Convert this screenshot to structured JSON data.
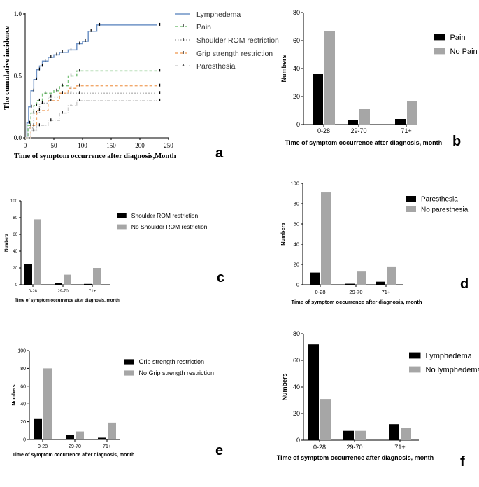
{
  "chart_data": [
    {
      "id": "a",
      "panel_label": "a",
      "type": "line",
      "title": "",
      "xlabel": "Time of symptom occurrence after diagnosis,Month",
      "ylabel": "The cumulative incidence",
      "xlim": [
        0,
        250
      ],
      "ylim": [
        0,
        1.0
      ],
      "xticks": [
        "0",
        "50",
        "100",
        "150",
        "200",
        "250"
      ],
      "yticks": [
        "0.0",
        "0.5",
        "1.0"
      ],
      "legend_position": "right",
      "series": [
        {
          "name": "Lymphedema",
          "color": "#6f93c6",
          "style": "solid",
          "x": [
            0,
            3,
            6,
            10,
            15,
            20,
            25,
            30,
            40,
            50,
            60,
            75,
            90,
            100,
            110,
            125,
            230
          ],
          "y": [
            0.0,
            0.12,
            0.25,
            0.38,
            0.47,
            0.55,
            0.58,
            0.62,
            0.65,
            0.67,
            0.69,
            0.71,
            0.76,
            0.78,
            0.86,
            0.91,
            0.91
          ]
        },
        {
          "name": "Pain",
          "color": "#7cc47c",
          "style": "dashed",
          "x": [
            0,
            5,
            10,
            15,
            20,
            30,
            50,
            60,
            75,
            90,
            230
          ],
          "y": [
            0.0,
            0.1,
            0.2,
            0.26,
            0.3,
            0.36,
            0.38,
            0.42,
            0.5,
            0.54,
            0.54
          ]
        },
        {
          "name": "Shoulder ROM restriction",
          "color": "#aaaaaa",
          "style": "dotted",
          "x": [
            0,
            5,
            15,
            25,
            40,
            60,
            75,
            90,
            230
          ],
          "y": [
            0.0,
            0.08,
            0.2,
            0.28,
            0.33,
            0.36,
            0.36,
            0.36,
            0.36
          ]
        },
        {
          "name": "Grip strength restriction",
          "color": "#f2a86b",
          "style": "dashed",
          "x": [
            0,
            10,
            20,
            40,
            60,
            75,
            90,
            230
          ],
          "y": [
            0.0,
            0.1,
            0.22,
            0.3,
            0.36,
            0.4,
            0.42,
            0.42
          ]
        },
        {
          "name": "Paresthesia",
          "color": "#cfcfcf",
          "style": "dashdot",
          "x": [
            0,
            10,
            20,
            40,
            60,
            75,
            90,
            230
          ],
          "y": [
            0.0,
            0.06,
            0.1,
            0.14,
            0.2,
            0.26,
            0.3,
            0.3
          ]
        }
      ]
    },
    {
      "id": "b",
      "panel_label": "b",
      "type": "bar",
      "categories": [
        "0-28",
        "29-70",
        "71+"
      ],
      "series": [
        {
          "name": "Pain",
          "values": [
            36,
            3,
            4
          ]
        },
        {
          "name": "No Pain",
          "values": [
            67,
            11,
            17
          ]
        }
      ],
      "xlabel": "Time of symptom occurrence after diagnosis, month",
      "ylabel": "Numbers",
      "ylim": [
        0,
        80
      ],
      "yticks": [
        "0",
        "20",
        "40",
        "60",
        "80"
      ],
      "legend_position": "right"
    },
    {
      "id": "c",
      "panel_label": "c",
      "type": "bar",
      "categories": [
        "0-28",
        "29-70",
        "71+"
      ],
      "series": [
        {
          "name": "Shoulder ROM restriction",
          "values": [
            25,
            2,
            1
          ]
        },
        {
          "name": "No Shoulder ROM restriction",
          "values": [
            78,
            12,
            20
          ]
        }
      ],
      "xlabel": "Time of symptom occurrence after diagnosis, month",
      "ylabel": "Numbers",
      "ylim": [
        0,
        100
      ],
      "yticks": [
        "0",
        "20",
        "40",
        "60",
        "80",
        "100"
      ],
      "legend_position": "right"
    },
    {
      "id": "d",
      "panel_label": "d",
      "type": "bar",
      "categories": [
        "0-28",
        "29-70",
        "71+"
      ],
      "series": [
        {
          "name": "Paresthesia",
          "values": [
            12,
            1,
            3
          ]
        },
        {
          "name": "No  paresthesia",
          "values": [
            91,
            13,
            18
          ]
        }
      ],
      "xlabel": "Time of symptom occurrence after diagnosis, month",
      "ylabel": "Numbers",
      "ylim": [
        0,
        100
      ],
      "yticks": [
        "0",
        "20",
        "40",
        "60",
        "80",
        "100"
      ],
      "legend_position": "right"
    },
    {
      "id": "e",
      "panel_label": "e",
      "type": "bar",
      "categories": [
        "0-28",
        "29-70",
        "71+"
      ],
      "series": [
        {
          "name": "Grip strength restriction",
          "values": [
            23,
            5,
            2
          ]
        },
        {
          "name": "No Grip strength restriction",
          "values": [
            80,
            9,
            19
          ]
        }
      ],
      "xlabel": "Time of symptom occurrence after diagnosis, month",
      "ylabel": "Numbers",
      "ylim": [
        0,
        100
      ],
      "yticks": [
        "0",
        "20",
        "40",
        "60",
        "80",
        "100"
      ],
      "legend_position": "right"
    },
    {
      "id": "f",
      "panel_label": "f",
      "type": "bar",
      "categories": [
        "0-28",
        "29-70",
        "71+"
      ],
      "series": [
        {
          "name": "Lymphedema",
          "values": [
            72,
            7,
            12
          ]
        },
        {
          "name": "No lymphedema",
          "values": [
            31,
            7,
            9
          ]
        }
      ],
      "xlabel": "Time of symptom occurrence after diagnosis, month",
      "ylabel": "Numbers",
      "ylim": [
        0,
        80
      ],
      "yticks": [
        "0",
        "20",
        "40",
        "60",
        "80"
      ],
      "legend_position": "right"
    }
  ],
  "colors": {
    "dark_bar": "#000000",
    "light_bar": "#a6a6a6",
    "axis": "#000000"
  }
}
